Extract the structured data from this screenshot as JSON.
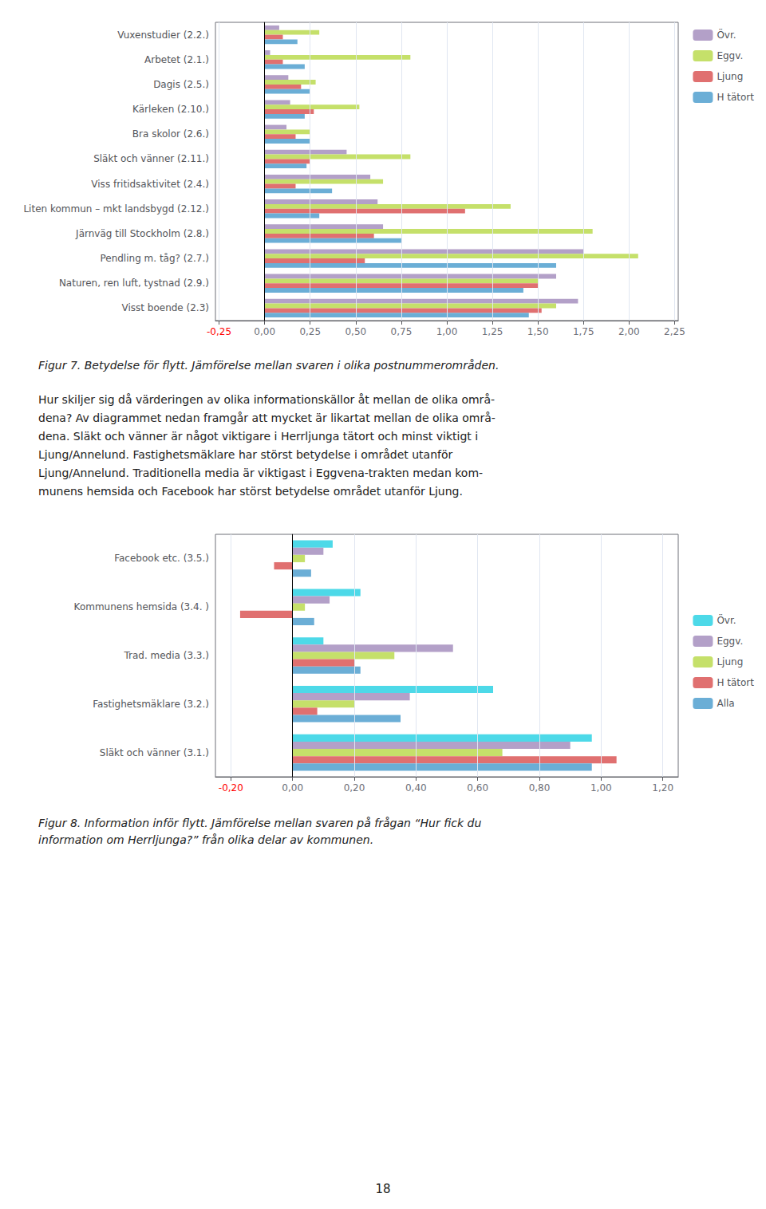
{
  "chart_data": [
    {
      "type": "bar",
      "orientation": "horizontal",
      "title": "Figur 7. Betydelse för flytt. Jämförelse mellan svaren i olika postnummerområden.",
      "categories": [
        "Vuxenstudier (2.2.)",
        "Arbetet (2.1.)",
        "Dagis (2.5.)",
        "Kärleken (2.10.)",
        "Bra skolor (2.6.)",
        "Släkt och vänner (2.11.)",
        "Viss fritidsaktivitet (2.4.)",
        "Liten kommun – mkt landsbygd (2.12.)",
        "Järnväg till Stockholm (2.8.)",
        "Pendling m. tåg? (2.7.)",
        "Naturen, ren luft, tystnad (2.9.)",
        "Visst boende (2.3)"
      ],
      "series": [
        {
          "name": "Övr.",
          "color": "#b3a0c8",
          "values": [
            0.08,
            0.03,
            0.13,
            0.14,
            0.12,
            0.45,
            0.58,
            0.62,
            0.65,
            1.75,
            1.6,
            1.72
          ]
        },
        {
          "name": "Eggv.",
          "color": "#c5e06a",
          "values": [
            0.3,
            0.8,
            0.28,
            0.52,
            0.25,
            0.8,
            0.65,
            1.35,
            1.8,
            2.05,
            1.5,
            1.6
          ]
        },
        {
          "name": "Ljung",
          "color": "#e07070",
          "values": [
            0.1,
            0.1,
            0.2,
            0.27,
            0.17,
            0.25,
            0.17,
            1.1,
            0.6,
            0.55,
            1.5,
            1.52
          ]
        },
        {
          "name": "H tätort",
          "color": "#6baed6",
          "values": [
            0.18,
            0.22,
            0.25,
            0.22,
            0.25,
            0.23,
            0.37,
            0.3,
            0.75,
            1.6,
            1.42,
            1.45
          ]
        }
      ],
      "xlim": [
        -0.27,
        2.27
      ],
      "xticks": [
        {
          "value": -0.25,
          "label": "-0,25"
        },
        {
          "value": 0.0,
          "label": "0,00"
        },
        {
          "value": 0.25,
          "label": "0,25"
        },
        {
          "value": 0.5,
          "label": "0,50"
        },
        {
          "value": 0.75,
          "label": "0,75"
        },
        {
          "value": 1.0,
          "label": "1,00"
        },
        {
          "value": 1.25,
          "label": "1,25"
        },
        {
          "value": 1.5,
          "label": "1,50"
        },
        {
          "value": 1.75,
          "label": "1,75"
        },
        {
          "value": 2.0,
          "label": "2,00"
        },
        {
          "value": 2.25,
          "label": "2,25"
        }
      ],
      "grid": true,
      "legend": "upper right"
    },
    {
      "type": "bar",
      "orientation": "horizontal",
      "subtitle": "Hur skiljer sig då värderingen av olika informationskällor åt mellan de olika områ-\ndena? Av diagrammet nedan framgår att mycket är likartat mellan de olika områ-\ndena. Släkt och vänner är något viktigare i Herrljunga tätort och minst viktigt i\nLjung/Annelund. Fastighetsmäklare har störst betydelse i området utanför\nLjung/Annelund. Traditionella media är viktigast i Eggvena-trakten medan kom-\nmunens hemsida och Facebook har störst betydelse området utanför Ljung.",
      "title": "Figur 8. Information inför flytt. Jämförelse mellan svaren på frågan “Hur fick du\ninformation om Herrljunga?” från olika delar av kommunen.",
      "categories": [
        "Facebook etc. (3.5.)",
        "Kommunens hemsida (3.4. )",
        "Trad. media (3.3.)",
        "Fastighetsmäklare (3.2.)",
        "Släkt och vänner (3.1.)"
      ],
      "series": [
        {
          "name": "Övr.",
          "color": "#4dd9e8",
          "values": [
            0.13,
            0.22,
            0.1,
            0.65,
            0.97
          ]
        },
        {
          "name": "Eggv.",
          "color": "#b3a0c8",
          "values": [
            0.1,
            0.12,
            0.52,
            0.38,
            0.9
          ]
        },
        {
          "name": "Ljung",
          "color": "#c5e06a",
          "values": [
            0.04,
            0.04,
            0.33,
            0.2,
            0.68
          ]
        },
        {
          "name": "H tätort",
          "color": "#e07070",
          "values": [
            -0.06,
            -0.17,
            0.2,
            0.08,
            1.05
          ]
        },
        {
          "name": "Alla",
          "color": "#6baed6",
          "values": [
            0.06,
            0.07,
            0.22,
            0.35,
            0.97
          ]
        }
      ],
      "xlim": [
        -0.25,
        1.25
      ],
      "xticks": [
        {
          "value": -0.2,
          "label": "-0,20"
        },
        {
          "value": 0.0,
          "label": "0,00"
        },
        {
          "value": 0.2,
          "label": "0,20"
        },
        {
          "value": 0.4,
          "label": "0,40"
        },
        {
          "value": 0.6,
          "label": "0,60"
        },
        {
          "value": 0.8,
          "label": "0,80"
        },
        {
          "value": 1.0,
          "label": "1,00"
        },
        {
          "value": 1.2,
          "label": "1,20"
        }
      ],
      "grid": true,
      "legend": "right"
    }
  ],
  "annotations": [
    "18"
  ]
}
